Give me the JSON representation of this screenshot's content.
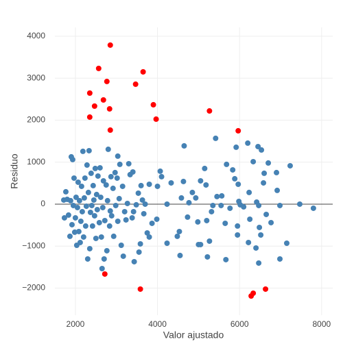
{
  "chart_data": {
    "type": "scatter",
    "x_label": "Valor ajustado",
    "y_label": "Residuo",
    "xlim": [
      1500,
      8270
    ],
    "ylim": [
      -2645,
      4210
    ],
    "xticks": [
      2000,
      4000,
      6000,
      8000
    ],
    "yticks": [
      {
        "value": -2000,
        "label": "−2000"
      },
      {
        "value": -1000,
        "label": "−1000"
      },
      0,
      1000,
      2000,
      3000,
      4000
    ],
    "grid": true,
    "zero_line": true,
    "series": [
      {
        "color": "#4682b4",
        "x": [
          7800,
          7467,
          7233,
          7150,
          6983,
          6917,
          6900,
          6983,
          6700,
          6767,
          6650,
          6583,
          6600,
          6517,
          6533,
          6450,
          6333,
          6417,
          6467,
          6400,
          6483,
          6467,
          6233,
          6200,
          6250,
          6217,
          5983,
          5967,
          6017,
          5883,
          5833,
          5917,
          5950,
          5950,
          6100,
          5767,
          5683,
          5667,
          5650,
          5567,
          5550,
          5450,
          5417,
          5350,
          5317,
          5267,
          5200,
          5217,
          5183,
          5150,
          5050,
          5050,
          5000,
          4983,
          4933,
          4850,
          4767,
          4733,
          4650,
          4633,
          4583,
          4533,
          4550,
          4483,
          4333,
          4233,
          4233,
          4100,
          4000,
          4067,
          3983,
          3867,
          3800,
          3800,
          3750,
          3700,
          3667,
          3633,
          3600,
          3583,
          3550,
          3533,
          3483,
          3433,
          3417,
          3400,
          3383,
          3333,
          3300,
          3267,
          3233,
          3200,
          3167,
          3150,
          3117,
          3083,
          3067,
          3033,
          3033,
          3017,
          2983,
          2967,
          2933,
          2917,
          2883,
          2867,
          2850,
          2833,
          2800,
          2783,
          2767,
          2750,
          2717,
          2700,
          2683,
          2667,
          2650,
          2633,
          2617,
          2600,
          2583,
          2550,
          2533,
          2517,
          2500,
          2483,
          2467,
          2450,
          2433,
          2417,
          2400,
          2383,
          2367,
          2350,
          2333,
          2317,
          2300,
          2283,
          2267,
          2250,
          2233,
          2217,
          2200,
          2183,
          2167,
          2150,
          2133,
          2117,
          2100,
          2083,
          2067,
          2050,
          2033,
          2017,
          2000,
          1983,
          1967,
          1950,
          1933,
          1917,
          1900,
          1883,
          1867,
          1833,
          1800,
          1767,
          1733,
          1717
        ],
        "values": [
          -98,
          0,
          914,
          -931,
          -33,
          327,
          751,
          -1306,
          980,
          -441,
          -245,
          506,
          735,
          -735,
          1290,
          1371,
          1012,
          49,
          -33,
          -1045,
          -555,
          -1404,
          278,
          1453,
          -359,
          -914,
          65,
          473,
          -16,
          604,
          816,
          1355,
          -522,
          -735,
          -65,
          -98,
          947,
          -1322,
          -457,
          196,
          -33,
          180,
          1567,
          -33,
          -180,
          -882,
          -392,
          -1257,
          457,
          849,
          555,
          -963,
          -963,
          -424,
          147,
          278,
          33,
          -310,
          1388,
          539,
          147,
          -653,
          -1224,
          -767,
          506,
          0,
          -931,
          653,
          424,
          784,
          -359,
          -457,
          473,
          -784,
          -686,
          0,
          -229,
          98,
          441,
          -947,
          -1143,
          261,
          -16,
          -1371,
          -180,
          767,
          -327,
          702,
          963,
          16,
          -376,
          -180,
          -1241,
          424,
          -980,
          947,
          131,
          1143,
          -408,
          620,
          -33,
          751,
          -767,
          376,
          -278,
          653,
          -163,
          -522,
          1306,
          82,
          -1110,
          457,
          -392,
          -1306,
          555,
          -82,
          -1535,
          -784,
          163,
          865,
          -441,
          669,
          -131,
          229,
          -816,
          849,
          -278,
          98,
          441,
          -522,
          -33,
          735,
          -196,
          -1061,
          1273,
          278,
          -1306,
          931,
          -49,
          -522,
          620,
          147,
          -784,
          1257,
          -180,
          424,
          -408,
          -914,
          82,
          -653,
          522,
          -82,
          -980,
          163,
          -327,
          -669,
          620,
          -33,
          1061,
          -490,
          1127,
          82,
          -767,
          -261,
          114,
          294,
          -327,
          98
        ]
      },
      {
        "color": "#ff0000",
        "x": [
          2850,
          2567,
          3650,
          2767,
          2350,
          3467,
          2467,
          2683,
          2833,
          3900,
          2350,
          3967,
          5267,
          2850,
          5967,
          2717,
          3583,
          6633,
          6333,
          6283
        ],
        "values": [
          3788,
          3233,
          3151,
          2922,
          2645,
          2857,
          2335,
          2482,
          2269,
          2367,
          2073,
          2024,
          2220,
          1763,
          1747,
          -1665,
          -2024,
          -2024,
          -2122,
          -2188
        ]
      }
    ]
  }
}
